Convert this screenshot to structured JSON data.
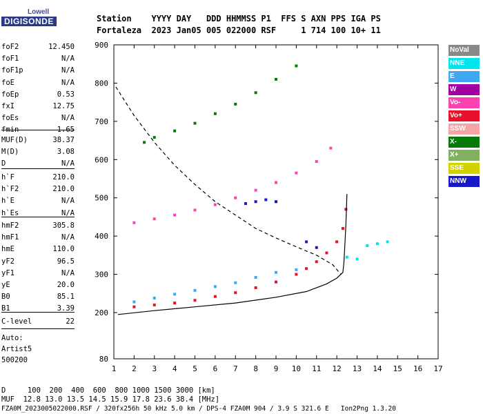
{
  "logo": {
    "top": "Lowell",
    "main": "DIGISONDE"
  },
  "header": {
    "line1": "Station    YYYY DAY   DDD HHMMSS P1  FFS S AXN PPS IGA PS",
    "line2": "Fortaleza  2023 Jan05 005 022000 RSF     1 714 100 10+ 11"
  },
  "params_group1": [
    {
      "name": "foF2",
      "value": "12.450"
    },
    {
      "name": "foF1",
      "value": "N/A"
    },
    {
      "name": "foF1p",
      "value": "N/A"
    },
    {
      "name": "foE",
      "value": "N/A"
    },
    {
      "name": "foEp",
      "value": "0.53"
    },
    {
      "name": "fxI",
      "value": "12.75"
    },
    {
      "name": "foEs",
      "value": "N/A"
    },
    {
      "name": "fmin",
      "value": "1.65"
    }
  ],
  "params_group2": [
    {
      "name": "MUF(D)",
      "value": "38.37"
    },
    {
      "name": "M(D)",
      "value": "3.08"
    },
    {
      "name": "D",
      "value": "N/A"
    }
  ],
  "params_group3": [
    {
      "name": "h`F",
      "value": "210.0"
    },
    {
      "name": "h`F2",
      "value": "210.0"
    },
    {
      "name": "h`E",
      "value": "N/A"
    },
    {
      "name": "h`Es",
      "value": "N/A"
    }
  ],
  "params_group4": [
    {
      "name": "hmF2",
      "value": "305.8"
    },
    {
      "name": "hmF1",
      "value": "N/A"
    },
    {
      "name": "hmE",
      "value": "110.0"
    },
    {
      "name": "yF2",
      "value": "96.5"
    },
    {
      "name": "yF1",
      "value": "N/A"
    },
    {
      "name": "yE",
      "value": "20.0"
    },
    {
      "name": "B0",
      "value": "85.1"
    },
    {
      "name": "B1",
      "value": "3.39"
    }
  ],
  "params_group5": [
    {
      "name": "C-level",
      "value": "22"
    }
  ],
  "auto": {
    "line1": "Auto:",
    "line2": "Artist5",
    "line3": "500200"
  },
  "footer": {
    "d_line": "D     100  200  400  600  800 1000 1500 3000 [km]",
    "muf_line": "MUF  12.8 13.0 13.5 14.5 15.9 17.8 23.6 38.4 [MHz]",
    "file_line": "FZA0M_2023005022000.RSF / 320fx256h 50 kHz 5.0 km / DPS-4 FZA0M 904 / 3.9 S 321.6 E   Ion2Png 1.3.20"
  },
  "legend": [
    {
      "label": "NoVal",
      "color": "#888888"
    },
    {
      "label": "NNE",
      "color": "#00e5ee"
    },
    {
      "label": "E",
      "color": "#3ea8f0"
    },
    {
      "label": "W",
      "color": "#a000a0"
    },
    {
      "label": "Vo-",
      "color": "#ff40b0"
    },
    {
      "label": "Vo+",
      "color": "#e8102a"
    },
    {
      "label": "SSW",
      "color": "#f4a6a6"
    },
    {
      "label": "X-",
      "color": "#087808"
    },
    {
      "label": "X+",
      "color": "#80b060"
    },
    {
      "label": "SSE",
      "color": "#d2d200"
    },
    {
      "label": "NNW",
      "color": "#1818c8"
    }
  ],
  "chart_data": {
    "type": "scatter",
    "xlabel": "",
    "ylabel": "",
    "x_ticks": [
      "1",
      "2",
      "3",
      "4",
      "5",
      "6",
      "7",
      "8",
      "9",
      "10",
      "11",
      "12",
      "13",
      "14",
      "15",
      "16",
      "17"
    ],
    "y_ticks": [
      "80",
      "200",
      "300",
      "400",
      "500",
      "600",
      "700",
      "800",
      "900"
    ],
    "xlim": [
      1,
      17
    ],
    "ylim": [
      80,
      900
    ],
    "y_scale": "linear-piecewise",
    "grid": false,
    "series": [
      {
        "name": "Vo+",
        "values": [
          [
            2,
            215
          ],
          [
            3,
            220
          ],
          [
            4,
            225
          ],
          [
            5,
            232
          ],
          [
            6,
            242
          ],
          [
            7,
            252
          ],
          [
            8,
            265
          ],
          [
            9,
            280
          ],
          [
            10,
            300
          ],
          [
            10.5,
            315
          ],
          [
            11,
            333
          ],
          [
            11.5,
            356
          ],
          [
            12,
            385
          ],
          [
            12.3,
            420
          ],
          [
            12.45,
            470
          ]
        ]
      },
      {
        "name": "E",
        "values": [
          [
            2,
            228
          ],
          [
            3,
            238
          ],
          [
            4,
            248
          ],
          [
            5,
            258
          ],
          [
            6,
            268
          ],
          [
            7,
            278
          ],
          [
            8,
            292
          ],
          [
            9,
            305
          ],
          [
            10,
            312
          ]
        ]
      },
      {
        "name": "Vo-",
        "values": [
          [
            2,
            435
          ],
          [
            3,
            445
          ],
          [
            4,
            455
          ],
          [
            5,
            468
          ],
          [
            6,
            482
          ],
          [
            7,
            500
          ],
          [
            8,
            520
          ],
          [
            9,
            540
          ],
          [
            10,
            565
          ],
          [
            11,
            595
          ],
          [
            11.7,
            630
          ]
        ]
      },
      {
        "name": "X-",
        "values": [
          [
            2.5,
            645
          ],
          [
            3,
            658
          ],
          [
            4,
            675
          ],
          [
            5,
            695
          ],
          [
            6,
            720
          ],
          [
            7,
            745
          ],
          [
            8,
            775
          ],
          [
            9,
            810
          ],
          [
            10,
            845
          ]
        ]
      },
      {
        "name": "NNW",
        "values": [
          [
            7.5,
            485
          ],
          [
            8,
            490
          ],
          [
            8.5,
            495
          ],
          [
            9,
            490
          ],
          [
            10.5,
            385
          ],
          [
            11,
            370
          ]
        ]
      },
      {
        "name": "NNE",
        "values": [
          [
            13.5,
            375
          ],
          [
            14,
            380
          ],
          [
            14.5,
            385
          ],
          [
            13,
            340
          ],
          [
            12.5,
            345
          ]
        ]
      }
    ],
    "profile_solid": [
      [
        1.2,
        195
      ],
      [
        3,
        205
      ],
      [
        5,
        215
      ],
      [
        7,
        225
      ],
      [
        9,
        240
      ],
      [
        10.5,
        255
      ],
      [
        11.5,
        275
      ],
      [
        12,
        290
      ],
      [
        12.3,
        305
      ],
      [
        12.35,
        330
      ],
      [
        12.4,
        380
      ],
      [
        12.45,
        430
      ],
      [
        12.5,
        510
      ]
    ],
    "profile_dashed": [
      [
        1.1,
        790
      ],
      [
        2,
        715
      ],
      [
        3,
        645
      ],
      [
        4,
        585
      ],
      [
        5,
        535
      ],
      [
        6,
        490
      ],
      [
        7,
        455
      ],
      [
        8,
        420
      ],
      [
        9,
        395
      ],
      [
        10,
        372
      ],
      [
        11,
        350
      ],
      [
        11.8,
        325
      ],
      [
        12.2,
        300
      ]
    ]
  }
}
